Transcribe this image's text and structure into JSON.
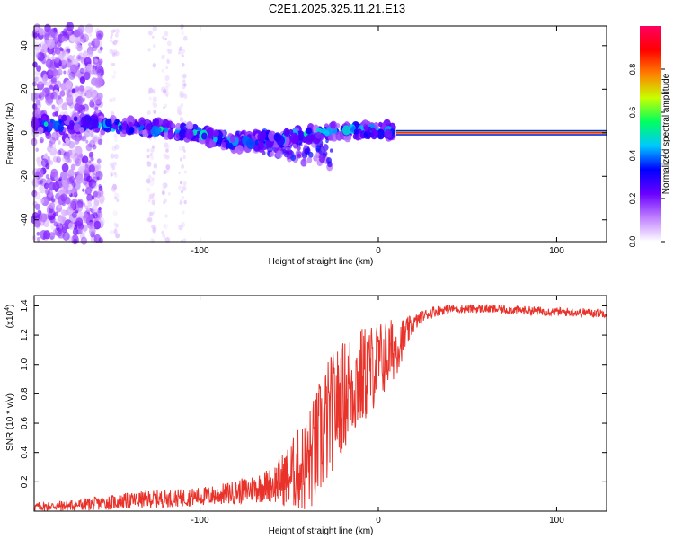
{
  "title": "C2E1.2025.325.11.21.E13",
  "chart_data": [
    {
      "type": "heatmap",
      "title": "C2E1.2025.325.11.21.E13",
      "xlabel": "Height of straight line (km)",
      "ylabel": "Frequency (Hz)",
      "xlim": [
        -193,
        128
      ],
      "ylim": [
        -50,
        49
      ],
      "xticks": [
        -100,
        0,
        100
      ],
      "xtick_labels": [
        "-100",
        "0",
        "100"
      ],
      "yticks": [
        -40,
        -20,
        0,
        20,
        40
      ],
      "ytick_labels": [
        "-40",
        "-20",
        "0",
        "20",
        "40"
      ],
      "colorbar": {
        "label": "Normalized spectral amplitude",
        "range": [
          0,
          1
        ],
        "ticks": [
          0.0,
          0.2,
          0.4,
          0.6,
          0.8
        ],
        "tick_labels": [
          "0.0",
          "0.2",
          "0.4",
          "0.6",
          "0.8"
        ],
        "colormap": [
          "#ffffff",
          "#c080ff",
          "#6a00ff",
          "#0000ff",
          "#00c8ff",
          "#00ff60",
          "#c8ff00",
          "#ff8000",
          "#ff0000",
          "#ff0060"
        ]
      },
      "features": [
        {
          "region": "noise",
          "x_range": [
            -193,
            -155
          ],
          "y_range": [
            -50,
            49
          ],
          "amplitude": 0.12
        },
        {
          "region": "sparse_noise",
          "x_range": [
            -155,
            -110
          ],
          "y_range": [
            -50,
            49
          ],
          "amplitude": 0.05
        },
        {
          "region": "ridge",
          "x_range": [
            -193,
            10
          ],
          "center_freq": [
            4,
            4,
            3,
            2,
            0,
            -5,
            -3,
            0,
            1,
            1
          ],
          "amplitude": 0.4
        },
        {
          "region": "low_tail",
          "x_range": [
            -90,
            -25
          ],
          "y_range": [
            -18,
            0
          ],
          "amplitude": 0.3
        },
        {
          "region": "tone",
          "x_range": [
            10,
            128
          ],
          "y": 0,
          "amplitude": 0.95
        }
      ]
    },
    {
      "type": "line",
      "xlabel": "Height of straight line (km)",
      "ylabel": "SNR (10 * v/v)",
      "scale_label": "(x10",
      "scale_exp": "4",
      "scale_suffix": ")",
      "xlim": [
        -193,
        128
      ],
      "ylim": [
        0,
        1.47
      ],
      "xticks": [
        -100,
        0,
        100
      ],
      "xtick_labels": [
        "-100",
        "0",
        "100"
      ],
      "yticks": [
        0.2,
        0.4,
        0.6,
        0.8,
        1.0,
        1.2,
        1.4
      ],
      "ytick_labels": [
        "0.2",
        "0.4",
        "0.6",
        "0.8",
        "1.0",
        "1.2",
        "1.4"
      ],
      "series": [
        {
          "name": "SNR",
          "color": "#e8322a",
          "x": [
            -193,
            -170,
            -150,
            -130,
            -110,
            -90,
            -75,
            -60,
            -50,
            -40,
            -35,
            -30,
            -25,
            -20,
            -15,
            -10,
            -5,
            0,
            5,
            10,
            15,
            20,
            25,
            30,
            40,
            60,
            80,
            100,
            128
          ],
          "values": [
            0.03,
            0.04,
            0.06,
            0.08,
            0.09,
            0.11,
            0.14,
            0.18,
            0.24,
            0.32,
            0.42,
            0.56,
            0.7,
            0.78,
            0.86,
            0.9,
            0.96,
            1.02,
            1.06,
            1.12,
            1.2,
            1.28,
            1.33,
            1.36,
            1.38,
            1.38,
            1.37,
            1.36,
            1.35
          ],
          "noise": [
            0.03,
            0.04,
            0.05,
            0.06,
            0.06,
            0.07,
            0.09,
            0.12,
            0.22,
            0.35,
            0.4,
            0.45,
            0.4,
            0.38,
            0.38,
            0.36,
            0.32,
            0.28,
            0.25,
            0.2,
            0.12,
            0.06,
            0.04,
            0.04,
            0.03,
            0.03,
            0.03,
            0.03,
            0.03
          ]
        }
      ]
    }
  ]
}
